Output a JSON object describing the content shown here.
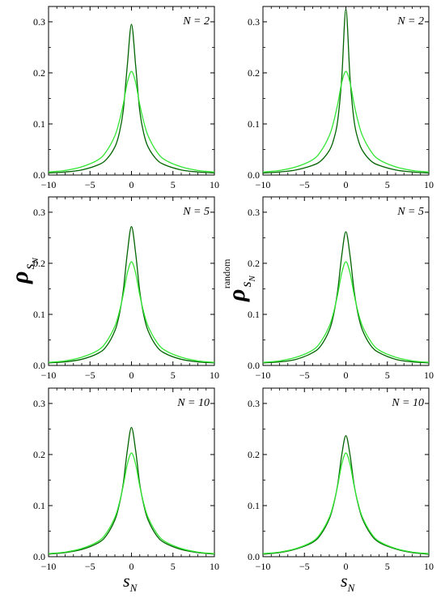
{
  "figure": {
    "left_ylabel_main": "ρ",
    "left_ylabel_sub": "s",
    "left_ylabel_subsub": "N",
    "right_ylabel_main": "ρ",
    "right_ylabel_sub": "s",
    "right_ylabel_subsub": "N",
    "right_ylabel_sup": "random",
    "xlabel_main": "s",
    "xlabel_sub": "N"
  },
  "colors": {
    "dark_curve": "#006400",
    "light_curve": "#33e633",
    "axes": "#000000"
  },
  "chart_data": [
    {
      "type": "line",
      "panel": "left",
      "annotation": "N = 2",
      "xlim": [
        -10,
        10
      ],
      "ylim": [
        0,
        0.33
      ],
      "xticks": [
        -10,
        -5,
        0,
        5,
        10
      ],
      "xtick_labels": [
        "−10",
        "−5",
        "0",
        "5",
        "10"
      ],
      "yticks": [
        0.0,
        0.1,
        0.2,
        0.3
      ],
      "ytick_labels": [
        "0.0",
        "0.1",
        "0.2",
        "0.3"
      ],
      "x": [
        -10,
        -8,
        -6,
        -4,
        -3,
        -2,
        -1.5,
        -1,
        -0.5,
        0,
        0.5,
        1,
        1.5,
        2,
        3,
        4,
        6,
        8,
        10
      ],
      "series": [
        {
          "values": [
            0.004,
            0.006,
            0.01,
            0.02,
            0.031,
            0.055,
            0.08,
            0.125,
            0.215,
            0.295,
            0.215,
            0.125,
            0.08,
            0.055,
            0.031,
            0.02,
            0.01,
            0.006,
            0.004
          ]
        },
        {
          "values": [
            0.006,
            0.009,
            0.016,
            0.03,
            0.047,
            0.077,
            0.103,
            0.138,
            0.181,
            0.203,
            0.181,
            0.138,
            0.103,
            0.077,
            0.047,
            0.03,
            0.016,
            0.009,
            0.006
          ]
        }
      ]
    },
    {
      "type": "line",
      "panel": "right",
      "annotation": "N = 2",
      "xlim": [
        -10,
        10
      ],
      "ylim": [
        0,
        0.33
      ],
      "xticks": [
        -10,
        -5,
        0,
        5,
        10
      ],
      "xtick_labels": [
        "−10",
        "−5",
        "0",
        "5",
        "10"
      ],
      "yticks": [
        0.0,
        0.1,
        0.2,
        0.3
      ],
      "ytick_labels": [
        "0.0",
        "0.1",
        "0.2",
        "0.3"
      ],
      "x": [
        -10,
        -8,
        -6,
        -4,
        -3,
        -2,
        -1.5,
        -1,
        -0.5,
        0,
        0.5,
        1,
        1.5,
        2,
        3,
        4,
        6,
        8,
        10
      ],
      "series": [
        {
          "values": [
            0.004,
            0.006,
            0.01,
            0.019,
            0.028,
            0.048,
            0.068,
            0.105,
            0.19,
            0.325,
            0.19,
            0.105,
            0.068,
            0.048,
            0.028,
            0.019,
            0.01,
            0.006,
            0.004
          ]
        },
        {
          "values": [
            0.006,
            0.009,
            0.016,
            0.03,
            0.047,
            0.077,
            0.103,
            0.138,
            0.181,
            0.203,
            0.181,
            0.138,
            0.103,
            0.077,
            0.047,
            0.03,
            0.016,
            0.009,
            0.006
          ]
        }
      ]
    },
    {
      "type": "line",
      "panel": "left",
      "annotation": "N = 5",
      "xlim": [
        -10,
        10
      ],
      "ylim": [
        0,
        0.33
      ],
      "xticks": [
        -10,
        -5,
        0,
        5,
        10
      ],
      "xtick_labels": [
        "−10",
        "−5",
        "0",
        "5",
        "10"
      ],
      "yticks": [
        0.0,
        0.1,
        0.2,
        0.3
      ],
      "ytick_labels": [
        "0.0",
        "0.1",
        "0.2",
        "0.3"
      ],
      "x": [
        -10,
        -8,
        -6,
        -4,
        -3,
        -2,
        -1.5,
        -1,
        -0.5,
        0,
        0.5,
        1,
        1.5,
        2,
        3,
        4,
        6,
        8,
        10
      ],
      "series": [
        {
          "values": [
            0.005,
            0.007,
            0.012,
            0.024,
            0.038,
            0.068,
            0.097,
            0.145,
            0.22,
            0.272,
            0.22,
            0.145,
            0.097,
            0.068,
            0.038,
            0.024,
            0.012,
            0.007,
            0.005
          ]
        },
        {
          "values": [
            0.006,
            0.009,
            0.016,
            0.03,
            0.047,
            0.077,
            0.103,
            0.138,
            0.181,
            0.203,
            0.181,
            0.138,
            0.103,
            0.077,
            0.047,
            0.03,
            0.016,
            0.009,
            0.006
          ]
        }
      ]
    },
    {
      "type": "line",
      "panel": "right",
      "annotation": "N = 5",
      "xlim": [
        -10,
        10
      ],
      "ylim": [
        0,
        0.33
      ],
      "xticks": [
        -10,
        -5,
        0,
        5,
        10
      ],
      "xtick_labels": [
        "−10",
        "−5",
        "0",
        "5",
        "10"
      ],
      "yticks": [
        0.0,
        0.1,
        0.2,
        0.3
      ],
      "ytick_labels": [
        "0.0",
        "0.1",
        "0.2",
        "0.3"
      ],
      "x": [
        -10,
        -8,
        -6,
        -4,
        -3,
        -2,
        -1.5,
        -1,
        -0.5,
        0,
        0.5,
        1,
        1.5,
        2,
        3,
        4,
        6,
        8,
        10
      ],
      "series": [
        {
          "values": [
            0.005,
            0.007,
            0.012,
            0.025,
            0.039,
            0.069,
            0.098,
            0.145,
            0.215,
            0.262,
            0.215,
            0.145,
            0.098,
            0.069,
            0.039,
            0.025,
            0.012,
            0.007,
            0.005
          ]
        },
        {
          "values": [
            0.006,
            0.009,
            0.016,
            0.03,
            0.047,
            0.077,
            0.103,
            0.138,
            0.181,
            0.203,
            0.181,
            0.138,
            0.103,
            0.077,
            0.047,
            0.03,
            0.016,
            0.009,
            0.006
          ]
        }
      ]
    },
    {
      "type": "line",
      "panel": "left",
      "annotation": "N = 10",
      "xlim": [
        -10,
        10
      ],
      "ylim": [
        0,
        0.33
      ],
      "xticks": [
        -10,
        -5,
        0,
        5,
        10
      ],
      "xtick_labels": [
        "−10",
        "−5",
        "0",
        "5",
        "10"
      ],
      "yticks": [
        0.0,
        0.1,
        0.2,
        0.3
      ],
      "ytick_labels": [
        "0.0",
        "0.1",
        "0.2",
        "0.3"
      ],
      "x": [
        -10,
        -8,
        -6,
        -4,
        -3,
        -2,
        -1.5,
        -1,
        -0.5,
        0,
        0.5,
        1,
        1.5,
        2,
        3,
        4,
        6,
        8,
        10
      ],
      "series": [
        {
          "values": [
            0.005,
            0.008,
            0.014,
            0.027,
            0.042,
            0.072,
            0.1,
            0.142,
            0.208,
            0.253,
            0.208,
            0.142,
            0.1,
            0.072,
            0.042,
            0.027,
            0.014,
            0.008,
            0.005
          ]
        },
        {
          "values": [
            0.006,
            0.009,
            0.016,
            0.03,
            0.047,
            0.077,
            0.103,
            0.138,
            0.181,
            0.203,
            0.181,
            0.138,
            0.103,
            0.077,
            0.047,
            0.03,
            0.016,
            0.009,
            0.006
          ]
        }
      ]
    },
    {
      "type": "line",
      "panel": "right",
      "annotation": "N = 10",
      "xlim": [
        -10,
        10
      ],
      "ylim": [
        0,
        0.33
      ],
      "xticks": [
        -10,
        -5,
        0,
        5,
        10
      ],
      "xtick_labels": [
        "−10",
        "−5",
        "0",
        "5",
        "10"
      ],
      "yticks": [
        0.0,
        0.1,
        0.2,
        0.3
      ],
      "ytick_labels": [
        "0.0",
        "0.1",
        "0.2",
        "0.3"
      ],
      "x": [
        -10,
        -8,
        -6,
        -4,
        -3,
        -2,
        -1.5,
        -1,
        -0.5,
        0,
        0.5,
        1,
        1.5,
        2,
        3,
        4,
        6,
        8,
        10
      ],
      "series": [
        {
          "values": [
            0.005,
            0.008,
            0.015,
            0.028,
            0.044,
            0.074,
            0.101,
            0.14,
            0.199,
            0.237,
            0.199,
            0.14,
            0.101,
            0.074,
            0.044,
            0.028,
            0.015,
            0.008,
            0.005
          ]
        },
        {
          "values": [
            0.006,
            0.009,
            0.016,
            0.03,
            0.047,
            0.077,
            0.103,
            0.138,
            0.181,
            0.203,
            0.181,
            0.138,
            0.103,
            0.077,
            0.047,
            0.03,
            0.016,
            0.009,
            0.006
          ]
        }
      ]
    }
  ]
}
